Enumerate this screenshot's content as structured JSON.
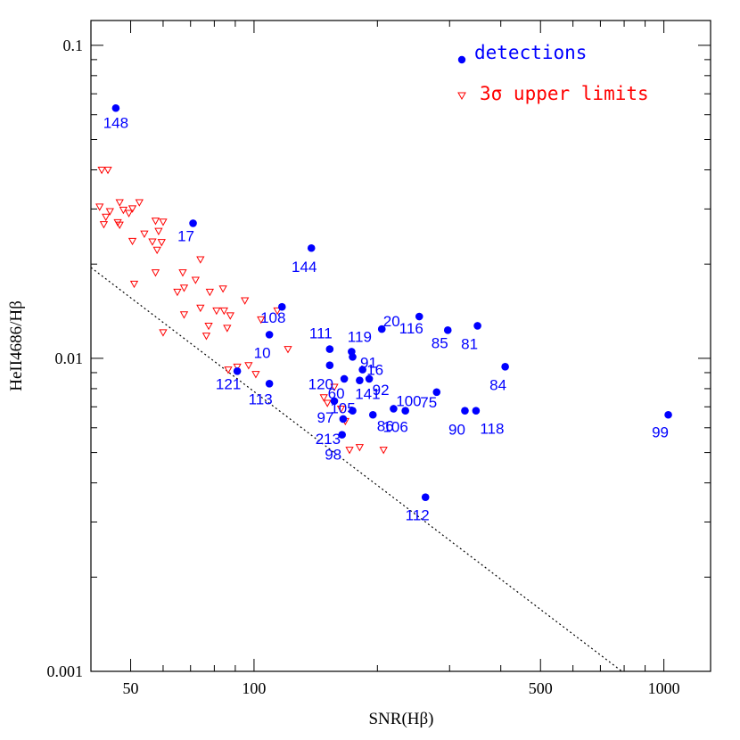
{
  "chart_data": {
    "type": "scatter",
    "xlabel": "SNR(Hβ)",
    "ylabel": "HeII4686/Hβ",
    "xscale": "log",
    "yscale": "log",
    "xlim": [
      40,
      1300
    ],
    "ylim": [
      0.001,
      0.12
    ],
    "x_ticks": [
      {
        "value": 50,
        "label": "50"
      },
      {
        "value": 100,
        "label": "100"
      },
      {
        "value": 500,
        "label": "500"
      },
      {
        "value": 1000,
        "label": "1000"
      }
    ],
    "y_ticks": [
      {
        "value": 0.1,
        "label": "0.1"
      },
      {
        "value": 0.01,
        "label": "0.01"
      },
      {
        "value": 0.001,
        "label": "0.001"
      }
    ],
    "legend": {
      "placement": "top-right",
      "entries": [
        {
          "series": "detections",
          "label": "detections",
          "color": "#0000ff",
          "marker": "filled-circle"
        },
        {
          "series": "upper_limits",
          "label": "3σ upper limits",
          "color": "#ff0000",
          "marker": "open-down-triangle"
        }
      ]
    },
    "series": [
      {
        "name": "detections",
        "color": "#0000ff",
        "points": [
          {
            "id": "148",
            "x": 46,
            "y": 0.063
          },
          {
            "id": "17",
            "x": 71,
            "y": 0.027
          },
          {
            "id": "144",
            "x": 138,
            "y": 0.0225
          },
          {
            "id": "108",
            "x": 117,
            "y": 0.0146
          },
          {
            "id": "10",
            "x": 109,
            "y": 0.0119
          },
          {
            "id": "121",
            "x": 91,
            "y": 0.0091
          },
          {
            "id": "113",
            "x": 109,
            "y": 0.0083
          },
          {
            "id": "111",
            "x": 153,
            "y": 0.0107
          },
          {
            "id": "120",
            "x": 153,
            "y": 0.0095
          },
          {
            "id": "97",
            "x": 157,
            "y": 0.0073
          },
          {
            "id": "119",
            "x": 173,
            "y": 0.0105
          },
          {
            "id": "91",
            "x": 174,
            "y": 0.0101
          },
          {
            "id": "16",
            "x": 184,
            "y": 0.0092
          },
          {
            "id": "60",
            "x": 166,
            "y": 0.0086
          },
          {
            "id": "141",
            "x": 181,
            "y": 0.0085
          },
          {
            "id": "92",
            "x": 191,
            "y": 0.0086
          },
          {
            "id": "105",
            "x": 174,
            "y": 0.0068
          },
          {
            "id": "213",
            "x": 165,
            "y": 0.0064
          },
          {
            "id": "98",
            "x": 164,
            "y": 0.0057
          },
          {
            "id": "20",
            "x": 205,
            "y": 0.0124
          },
          {
            "id": "116",
            "x": 253,
            "y": 0.0136
          },
          {
            "id": "85",
            "x": 297,
            "y": 0.0123
          },
          {
            "id": "81",
            "x": 351,
            "y": 0.0127
          },
          {
            "id": "84",
            "x": 410,
            "y": 0.0094
          },
          {
            "id": "86",
            "x": 195,
            "y": 0.0066
          },
          {
            "id": "100",
            "x": 219,
            "y": 0.0069
          },
          {
            "id": "106",
            "x": 234,
            "y": 0.0068
          },
          {
            "id": "75",
            "x": 279,
            "y": 0.0078
          },
          {
            "id": "112",
            "x": 262,
            "y": 0.0036
          },
          {
            "id": "90",
            "x": 327,
            "y": 0.0068
          },
          {
            "id": "118",
            "x": 348,
            "y": 0.0068
          },
          {
            "id": "99",
            "x": 1025,
            "y": 0.0066
          }
        ]
      },
      {
        "name": "upper_limits",
        "color": "#ff0000",
        "points": [
          {
            "x": 42.5,
            "y": 0.04
          },
          {
            "x": 44,
            "y": 0.04
          },
          {
            "x": 42,
            "y": 0.0305
          },
          {
            "x": 44.5,
            "y": 0.0295
          },
          {
            "x": 47,
            "y": 0.0315
          },
          {
            "x": 48,
            "y": 0.0298
          },
          {
            "x": 50.5,
            "y": 0.0301
          },
          {
            "x": 52.5,
            "y": 0.0315
          },
          {
            "x": 43.5,
            "y": 0.0283
          },
          {
            "x": 46.5,
            "y": 0.0272
          },
          {
            "x": 49.5,
            "y": 0.0291
          },
          {
            "x": 43,
            "y": 0.0268
          },
          {
            "x": 47,
            "y": 0.0267
          },
          {
            "x": 57.5,
            "y": 0.0275
          },
          {
            "x": 60,
            "y": 0.0273
          },
          {
            "x": 58.5,
            "y": 0.0255
          },
          {
            "x": 54,
            "y": 0.025
          },
          {
            "x": 50.5,
            "y": 0.0237
          },
          {
            "x": 56.5,
            "y": 0.0236
          },
          {
            "x": 59.5,
            "y": 0.0235
          },
          {
            "x": 58,
            "y": 0.0222
          },
          {
            "x": 74,
            "y": 0.0207
          },
          {
            "x": 57.5,
            "y": 0.0188
          },
          {
            "x": 67,
            "y": 0.0188
          },
          {
            "x": 51,
            "y": 0.0173
          },
          {
            "x": 72,
            "y": 0.0178
          },
          {
            "x": 65,
            "y": 0.0163
          },
          {
            "x": 67.5,
            "y": 0.0168
          },
          {
            "x": 78,
            "y": 0.0163
          },
          {
            "x": 84,
            "y": 0.0167
          },
          {
            "x": 95,
            "y": 0.0153
          },
          {
            "x": 74,
            "y": 0.0145
          },
          {
            "x": 81,
            "y": 0.0142
          },
          {
            "x": 84.5,
            "y": 0.0142
          },
          {
            "x": 67.5,
            "y": 0.0138
          },
          {
            "x": 87.5,
            "y": 0.0137
          },
          {
            "x": 104,
            "y": 0.0133
          },
          {
            "x": 77.5,
            "y": 0.0127
          },
          {
            "x": 86,
            "y": 0.0125
          },
          {
            "x": 60,
            "y": 0.0121
          },
          {
            "x": 76.5,
            "y": 0.0118
          },
          {
            "x": 114,
            "y": 0.0142
          },
          {
            "x": 121,
            "y": 0.0107
          },
          {
            "x": 86.5,
            "y": 0.0092
          },
          {
            "x": 91,
            "y": 0.0094
          },
          {
            "x": 97,
            "y": 0.0095
          },
          {
            "x": 101,
            "y": 0.0089
          },
          {
            "x": 157,
            "y": 0.0081
          },
          {
            "x": 148,
            "y": 0.0075
          },
          {
            "x": 151,
            "y": 0.0072
          },
          {
            "x": 163,
            "y": 0.0069
          },
          {
            "x": 167,
            "y": 0.0063
          },
          {
            "x": 171,
            "y": 0.0051
          },
          {
            "x": 181,
            "y": 0.0052
          },
          {
            "x": 207,
            "y": 0.0051
          }
        ]
      },
      {
        "name": "detection_limit_line",
        "style": "dotted",
        "color": "#000000",
        "points": [
          {
            "x": 40,
            "y": 0.0195
          },
          {
            "x": 790,
            "y": 0.001
          }
        ]
      }
    ]
  }
}
